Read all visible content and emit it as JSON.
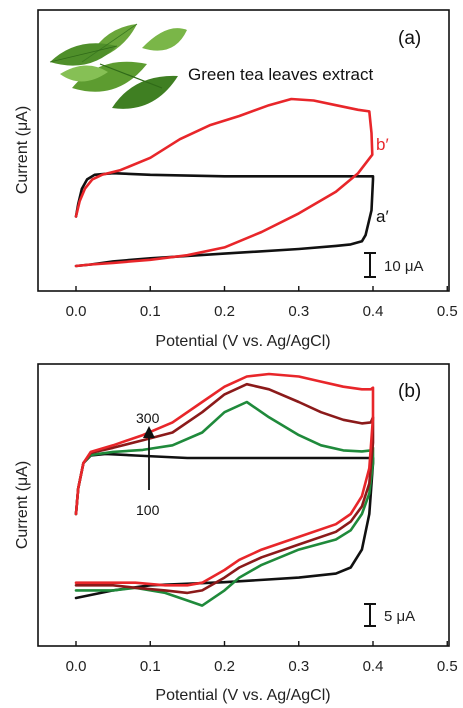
{
  "chart_data": [
    {
      "type": "line",
      "panel_label": "(a)",
      "xlabel": "Potential (V vs. Ag/AgCl)",
      "ylabel": "Current (μA)",
      "xlim": [
        -0.05,
        0.5
      ],
      "xticks": [
        "0.0",
        "0.1",
        "0.2",
        "0.3",
        "0.4",
        "0.5"
      ],
      "annotation": "Green tea leaves extract",
      "scale_bar": "10 μA",
      "scale_bar_value": 10,
      "series": [
        {
          "name": "a′",
          "color": "#111111",
          "x": [
            0.0,
            0.003,
            0.008,
            0.015,
            0.025,
            0.05,
            0.1,
            0.2,
            0.3,
            0.38,
            0.4,
            0.4,
            0.398,
            0.39,
            0.385,
            0.37,
            0.35,
            0.3,
            0.2,
            0.1,
            0.05,
            0.02,
            0.0
          ],
          "y": [
            48,
            52,
            57,
            60,
            61.5,
            62,
            61.5,
            61,
            61,
            61,
            61,
            60,
            50,
            42,
            40,
            39,
            38.5,
            37.5,
            36,
            34.5,
            33.5,
            32.5,
            32
          ]
        },
        {
          "name": "b′",
          "color": "#e8262a",
          "x": [
            0.0,
            0.005,
            0.012,
            0.022,
            0.035,
            0.06,
            0.1,
            0.14,
            0.18,
            0.22,
            0.26,
            0.29,
            0.32,
            0.35,
            0.38,
            0.395,
            0.398,
            0.399,
            0.38,
            0.35,
            0.3,
            0.25,
            0.2,
            0.15,
            0.1,
            0.05,
            0.02,
            0.0
          ],
          "y": [
            48,
            53,
            57,
            60,
            61.5,
            63,
            67,
            73,
            77.5,
            80.5,
            84,
            86,
            85.5,
            84,
            82.5,
            82,
            75,
            68,
            62,
            56,
            49,
            43,
            38,
            35.5,
            34,
            33,
            32.5,
            32
          ]
        }
      ]
    },
    {
      "type": "line",
      "panel_label": "(b)",
      "xlabel": "Potential (V vs. Ag/AgCl)",
      "ylabel": "Current (μA)",
      "xlim": [
        -0.05,
        0.5
      ],
      "xticks": [
        "0.0",
        "0.1",
        "0.2",
        "0.3",
        "0.4",
        "0.5"
      ],
      "scale_bar": "5 μA",
      "scale_bar_value": 5,
      "arrow_labels": [
        "300",
        "100"
      ],
      "series": [
        {
          "color": "#111111",
          "x": [
            0.0,
            0.003,
            0.01,
            0.02,
            0.04,
            0.08,
            0.15,
            0.25,
            0.35,
            0.4,
            0.4,
            0.395,
            0.385,
            0.37,
            0.35,
            0.3,
            0.2,
            0.1,
            0.05,
            0.0
          ],
          "y": [
            42,
            47,
            52,
            53.5,
            53.8,
            53.5,
            53,
            53,
            53,
            53,
            52,
            42,
            35,
            31.5,
            30.3,
            29.5,
            28.6,
            28,
            27,
            25.5
          ]
        },
        {
          "color": "#1f8a3b",
          "x": [
            0.0,
            0.003,
            0.01,
            0.02,
            0.05,
            0.09,
            0.13,
            0.17,
            0.2,
            0.23,
            0.26,
            0.3,
            0.33,
            0.36,
            0.385,
            0.397,
            0.4,
            0.4,
            0.395,
            0.385,
            0.37,
            0.35,
            0.3,
            0.25,
            0.22,
            0.2,
            0.17,
            0.15,
            0.12,
            0.08,
            0.05,
            0.02,
            0.0
          ],
          "y": [
            42,
            47,
            52,
            53.6,
            54.2,
            54.6,
            55.5,
            58,
            62,
            64,
            61,
            57.5,
            55.5,
            54.5,
            54.3,
            54.5,
            55,
            52,
            46,
            42,
            38.8,
            37,
            35,
            32,
            29.5,
            27,
            24,
            25,
            26.5,
            27.5,
            27,
            27,
            27
          ]
        },
        {
          "color": "#8b1a1a",
          "x": [
            0.0,
            0.003,
            0.01,
            0.02,
            0.05,
            0.09,
            0.13,
            0.17,
            0.2,
            0.23,
            0.26,
            0.3,
            0.33,
            0.36,
            0.385,
            0.397,
            0.4,
            0.4,
            0.395,
            0.385,
            0.37,
            0.35,
            0.3,
            0.25,
            0.22,
            0.2,
            0.17,
            0.15,
            0.12,
            0.08,
            0.05,
            0.02,
            0.0
          ],
          "y": [
            42,
            47,
            52,
            54,
            55,
            56.5,
            58,
            62,
            65.5,
            67.5,
            66.5,
            64,
            62,
            60.5,
            59.8,
            60,
            61,
            56,
            48,
            43.5,
            40.5,
            38.5,
            36,
            33.5,
            31.5,
            29.5,
            27,
            26.5,
            27,
            27.5,
            28,
            28,
            28
          ]
        },
        {
          "color": "#e8262a",
          "x": [
            0.0,
            0.003,
            0.01,
            0.02,
            0.05,
            0.09,
            0.13,
            0.17,
            0.2,
            0.23,
            0.26,
            0.3,
            0.33,
            0.36,
            0.385,
            0.397,
            0.4,
            0.4,
            0.395,
            0.385,
            0.37,
            0.35,
            0.3,
            0.25,
            0.22,
            0.2,
            0.17,
            0.15,
            0.12,
            0.08,
            0.05,
            0.02,
            0.0
          ],
          "y": [
            42,
            47,
            52,
            54.2,
            55.5,
            57.5,
            60,
            64,
            67,
            69,
            69.5,
            69,
            68,
            67,
            66.5,
            66.5,
            66.8,
            61,
            51,
            45.5,
            42,
            40,
            37.5,
            35,
            33,
            31,
            28.5,
            28,
            28,
            28.5,
            28.5,
            28.5,
            28.5
          ]
        }
      ]
    }
  ]
}
